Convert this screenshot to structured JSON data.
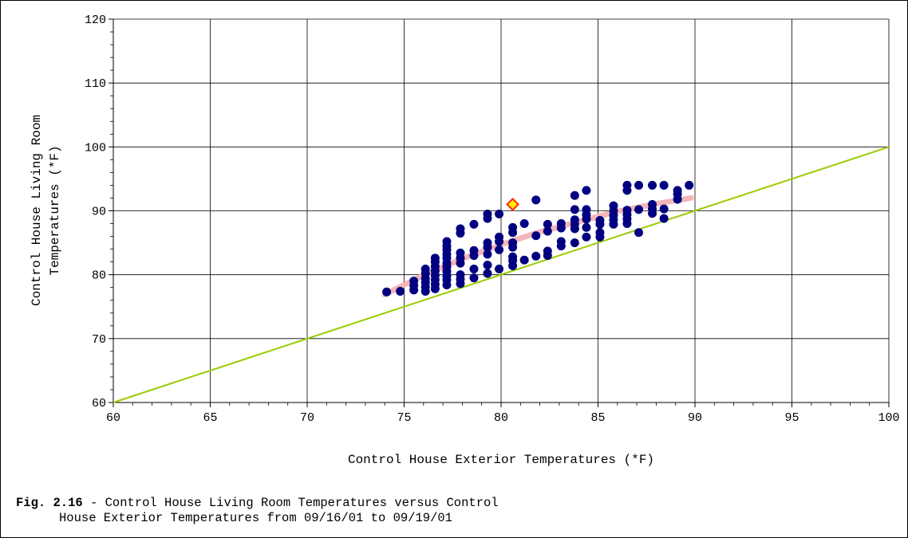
{
  "chart_data": {
    "type": "scatter",
    "xlabel": "Control House Exterior Temperatures (*F)",
    "ylabel_lines": [
      "Control House Living Room",
      "Temperatures (*F)"
    ],
    "xlim": [
      60,
      100
    ],
    "ylim": [
      60,
      120
    ],
    "x_ticks": [
      60,
      65,
      70,
      75,
      80,
      85,
      90,
      95,
      100
    ],
    "y_ticks": [
      60,
      70,
      80,
      90,
      100,
      110,
      120
    ],
    "grid": true,
    "series": [
      {
        "marker": "circle",
        "color": "#000080",
        "points": [
          [
            74.1,
            77.3
          ],
          [
            74.8,
            77.4
          ],
          [
            75.5,
            77.6
          ],
          [
            75.5,
            78.3
          ],
          [
            75.5,
            79.0
          ],
          [
            76.1,
            77.4
          ],
          [
            76.1,
            78.1
          ],
          [
            76.1,
            78.8
          ],
          [
            76.1,
            79.4
          ],
          [
            76.1,
            80.2
          ],
          [
            76.1,
            80.9
          ],
          [
            76.6,
            77.8
          ],
          [
            76.6,
            78.5
          ],
          [
            76.6,
            79.2
          ],
          [
            76.6,
            79.9
          ],
          [
            76.6,
            80.6
          ],
          [
            76.6,
            81.3
          ],
          [
            76.6,
            82.0
          ],
          [
            76.6,
            82.6
          ],
          [
            77.2,
            78.4
          ],
          [
            77.2,
            79.2
          ],
          [
            77.2,
            79.8
          ],
          [
            77.2,
            80.5
          ],
          [
            77.2,
            81.2
          ],
          [
            77.2,
            81.8
          ],
          [
            77.2,
            82.6
          ],
          [
            77.2,
            83.2
          ],
          [
            77.2,
            83.9
          ],
          [
            77.2,
            84.5
          ],
          [
            77.2,
            85.2
          ],
          [
            77.9,
            78.6
          ],
          [
            77.9,
            79.3
          ],
          [
            77.9,
            80.0
          ],
          [
            77.9,
            81.8
          ],
          [
            77.9,
            82.6
          ],
          [
            77.9,
            83.4
          ],
          [
            77.9,
            86.5
          ],
          [
            77.9,
            87.2
          ],
          [
            78.6,
            79.5
          ],
          [
            78.6,
            80.9
          ],
          [
            78.6,
            83.0
          ],
          [
            78.6,
            83.8
          ],
          [
            78.6,
            87.9
          ],
          [
            79.3,
            80.2
          ],
          [
            79.3,
            81.5
          ],
          [
            79.3,
            83.2
          ],
          [
            79.3,
            84.3
          ],
          [
            79.3,
            85.0
          ],
          [
            79.3,
            88.8
          ],
          [
            79.3,
            89.5
          ],
          [
            79.9,
            80.9
          ],
          [
            79.9,
            83.9
          ],
          [
            79.9,
            85.2
          ],
          [
            79.9,
            85.9
          ],
          [
            79.9,
            89.5
          ],
          [
            80.6,
            81.4
          ],
          [
            80.6,
            82.2
          ],
          [
            80.6,
            82.8
          ],
          [
            80.6,
            84.3
          ],
          [
            80.6,
            85.0
          ],
          [
            80.6,
            86.6
          ],
          [
            80.6,
            87.4
          ],
          [
            81.2,
            82.3
          ],
          [
            81.2,
            88.0
          ],
          [
            81.8,
            82.9
          ],
          [
            81.8,
            86.1
          ],
          [
            81.8,
            91.7
          ],
          [
            82.4,
            83.0
          ],
          [
            82.4,
            83.7
          ],
          [
            82.4,
            86.8
          ],
          [
            82.4,
            87.9
          ],
          [
            83.1,
            84.5
          ],
          [
            83.1,
            85.2
          ],
          [
            83.1,
            87.3
          ],
          [
            83.1,
            88.0
          ],
          [
            83.8,
            85.0
          ],
          [
            83.8,
            87.2
          ],
          [
            83.8,
            87.9
          ],
          [
            83.8,
            88.6
          ],
          [
            83.8,
            90.2
          ],
          [
            83.8,
            92.4
          ],
          [
            84.4,
            85.9
          ],
          [
            84.4,
            87.4
          ],
          [
            84.4,
            88.7
          ],
          [
            84.4,
            89.4
          ],
          [
            84.4,
            90.2
          ],
          [
            84.4,
            93.2
          ],
          [
            85.1,
            85.9
          ],
          [
            85.1,
            86.6
          ],
          [
            85.1,
            87.9
          ],
          [
            85.1,
            88.5
          ],
          [
            85.8,
            87.9
          ],
          [
            85.8,
            88.6
          ],
          [
            85.8,
            89.3
          ],
          [
            85.8,
            90.0
          ],
          [
            85.8,
            90.8
          ],
          [
            86.5,
            88.0
          ],
          [
            86.5,
            88.7
          ],
          [
            86.5,
            89.4
          ],
          [
            86.5,
            90.1
          ],
          [
            86.5,
            93.2
          ],
          [
            86.5,
            94.0
          ],
          [
            87.1,
            86.6
          ],
          [
            87.1,
            90.2
          ],
          [
            87.1,
            94.0
          ],
          [
            87.8,
            89.6
          ],
          [
            87.8,
            90.3
          ],
          [
            87.8,
            91.0
          ],
          [
            87.8,
            94.0
          ],
          [
            88.4,
            88.8
          ],
          [
            88.4,
            90.3
          ],
          [
            88.4,
            94.0
          ],
          [
            89.1,
            91.8
          ],
          [
            89.1,
            92.6
          ],
          [
            89.1,
            93.2
          ],
          [
            89.7,
            94.0
          ]
        ]
      },
      {
        "marker": "diamond",
        "color": "#ff2a00",
        "fill": "#ffee00",
        "points": [
          [
            80.6,
            91.0
          ]
        ]
      }
    ],
    "trendline": {
      "color": "#f4b6b8",
      "x": [
        74.0,
        76.0,
        78.0,
        80.0,
        82.0,
        84.0,
        86.0,
        88.0,
        89.8
      ],
      "y": [
        76.9,
        79.9,
        82.5,
        84.7,
        86.7,
        88.3,
        89.9,
        91.1,
        92.0
      ]
    },
    "reference_line": {
      "color": "#99cc00",
      "x": [
        60,
        100
      ],
      "y": [
        60,
        100
      ]
    }
  },
  "caption": {
    "label": "Fig. 2.16",
    "text_line1": " - Control House Living Room Temperatures versus Control",
    "text_line2": "House Exterior Temperatures from 09/16/01 to 09/19/01"
  }
}
